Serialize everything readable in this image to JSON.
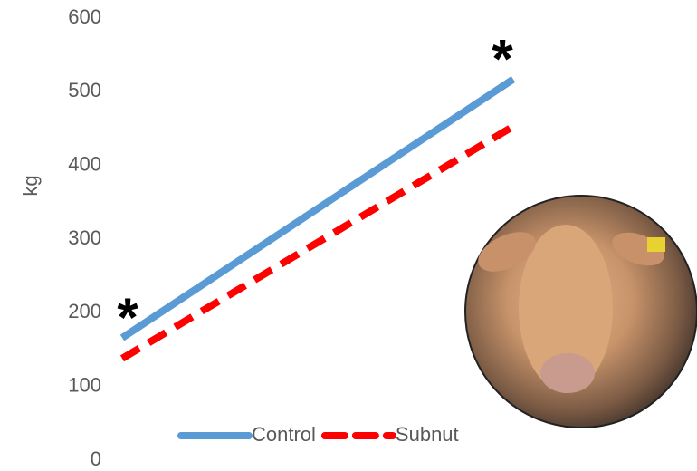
{
  "chart_data": {
    "type": "line",
    "y_label": "kg",
    "categories": [
      null,
      null
    ],
    "series": [
      {
        "name": "Control",
        "color": "#5b9bd5",
        "dash": false,
        "values": [
          166,
          517
        ]
      },
      {
        "name": "Subnut",
        "color": "#ff0000",
        "dash": true,
        "values": [
          138,
          453
        ]
      }
    ],
    "ylim": [
      0,
      600
    ],
    "yticks": [
      0,
      100,
      200,
      300,
      400,
      500,
      600
    ],
    "grid": false,
    "legend": "bottom",
    "annotations": [
      "*",
      "*"
    ]
  }
}
